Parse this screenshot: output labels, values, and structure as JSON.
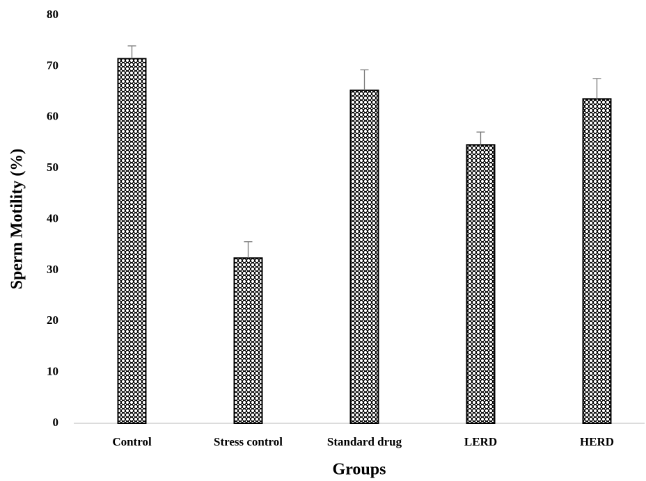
{
  "chart_data": {
    "type": "bar",
    "x_label": "Groups",
    "y_label": "Sperm Motility (%)",
    "categories": [
      "Control",
      "Stress control",
      "Standard drug",
      "LERD",
      "HERD"
    ],
    "values": [
      71.5,
      32.4,
      65.3,
      54.6,
      63.6
    ],
    "errors": [
      2.5,
      3.2,
      4.0,
      2.5,
      4.0
    ],
    "color": "#000000",
    "ylim": [
      0,
      80
    ],
    "yticks": [
      0,
      10,
      20,
      30,
      40,
      50,
      60,
      70,
      80
    ],
    "grid": false
  }
}
